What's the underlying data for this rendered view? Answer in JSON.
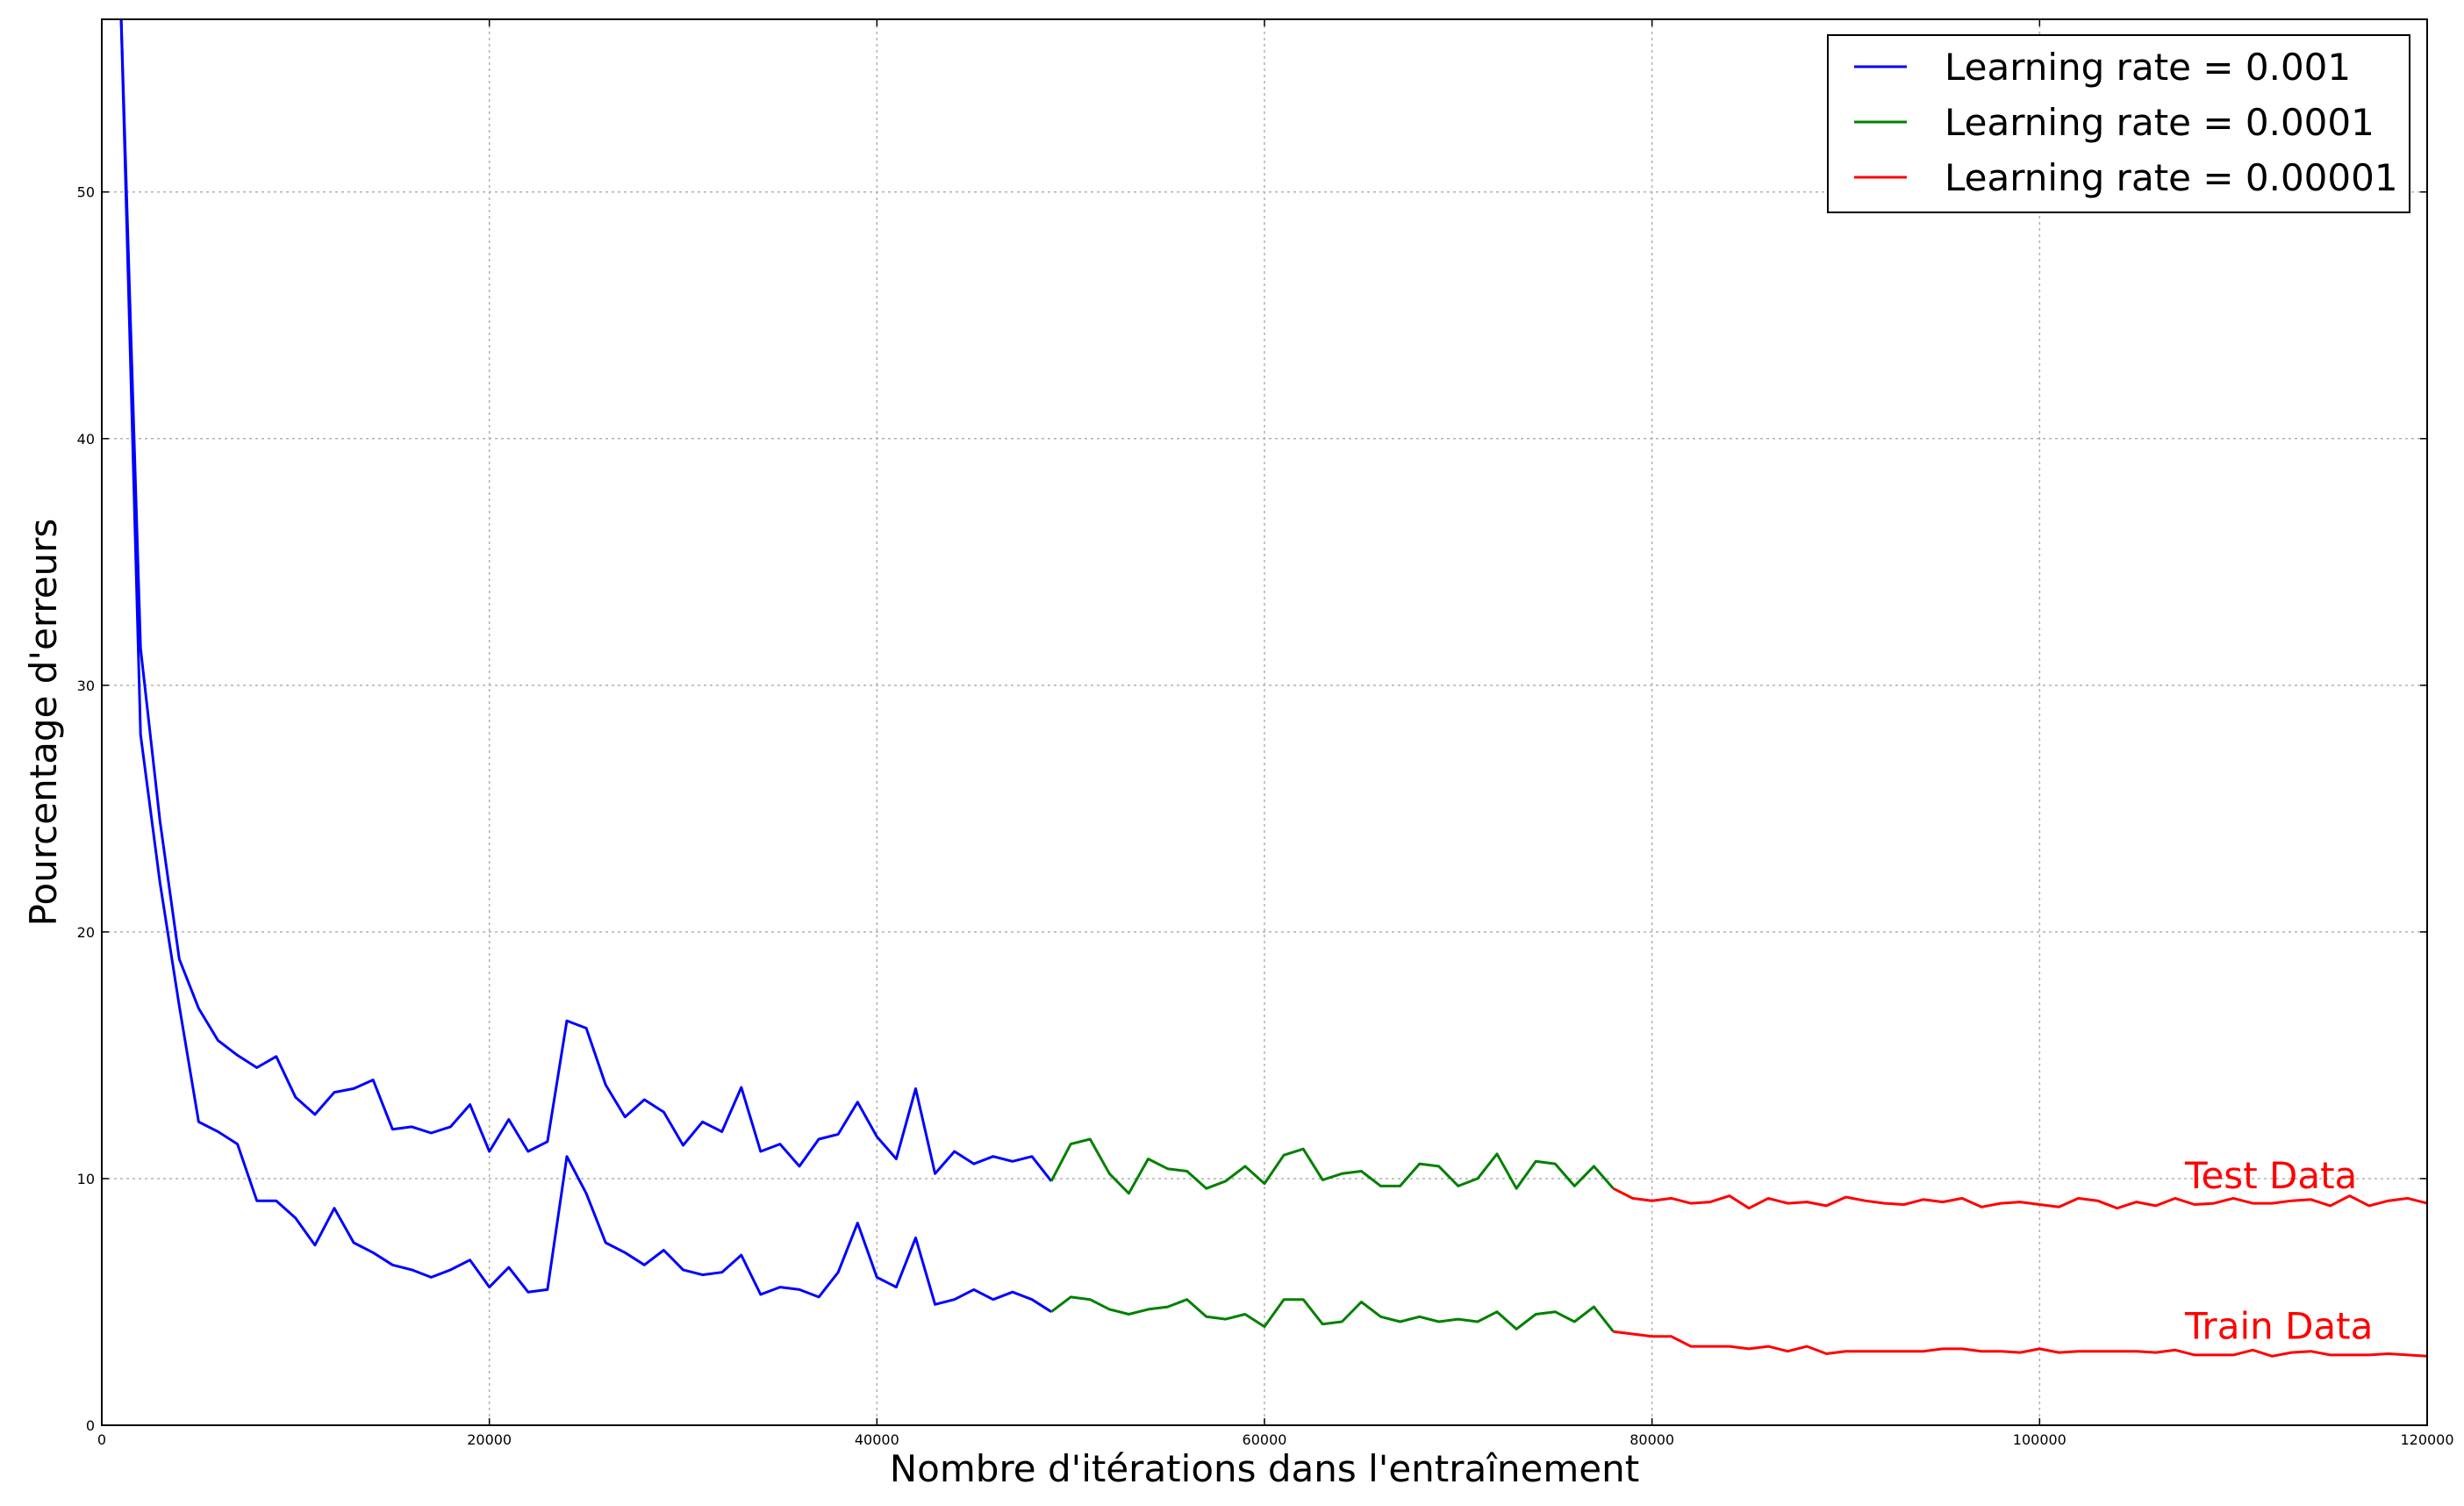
{
  "chart_data": {
    "type": "line",
    "title": "",
    "xlabel": "Nombre d'itérations dans l'entraînement",
    "ylabel": "Pourcentage d'erreurs",
    "xlim": [
      0,
      120000
    ],
    "ylim": [
      0,
      57
    ],
    "x_ticks": [
      0,
      20000,
      40000,
      60000,
      80000,
      100000,
      120000
    ],
    "y_ticks": [
      0,
      10,
      20,
      30,
      40,
      50
    ],
    "grid": true,
    "legend_position": "top-right",
    "colors": {
      "lr_001": "#0000ff",
      "lr_0001": "#008000",
      "lr_00001": "#ff0000",
      "annotation": "#ff0000"
    },
    "series": [
      {
        "name": "Learning rate = 0.001",
        "color": "#0000ff",
        "curves": [
          {
            "x": [
              1000,
              2000,
              3000,
              4000,
              5000,
              6000,
              7000,
              8000,
              9000,
              10000,
              11000,
              12000,
              13000,
              14000,
              15000,
              16000,
              17000,
              18000,
              19000,
              20000,
              21000,
              22000,
              23000,
              24000,
              25000,
              26000,
              27000,
              28000,
              29000,
              30000,
              31000,
              32000,
              33000,
              34000,
              35000,
              36000,
              37000,
              38000,
              39000,
              40000,
              41000,
              42000,
              43000,
              44000,
              45000,
              46000,
              47000,
              48000,
              49000
            ],
            "y": [
              57,
              31.5,
              24.5,
              18.9,
              16.9,
              15.6,
              15.0,
              14.5,
              14.95,
              13.3,
              12.6,
              13.5,
              13.65,
              14.0,
              12.0,
              12.1,
              11.85,
              12.1,
              13.0,
              11.1,
              12.4,
              11.1,
              11.5,
              16.4,
              16.1,
              13.8,
              12.5,
              13.2,
              12.7,
              11.35,
              12.3,
              11.9,
              13.7,
              11.1,
              11.4,
              10.5,
              11.6,
              11.8,
              13.1,
              11.7,
              10.8,
              13.65,
              10.2,
              11.1,
              10.6,
              10.9,
              10.7,
              10.9,
              9.9
            ]
          },
          {
            "x": [
              1000,
              2000,
              3000,
              4000,
              5000,
              6000,
              7000,
              8000,
              9000,
              10000,
              11000,
              12000,
              13000,
              14000,
              15000,
              16000,
              17000,
              18000,
              19000,
              20000,
              21000,
              22000,
              23000,
              24000,
              25000,
              26000,
              27000,
              28000,
              29000,
              30000,
              31000,
              32000,
              33000,
              34000,
              35000,
              36000,
              37000,
              38000,
              39000,
              40000,
              41000,
              42000,
              43000,
              44000,
              45000,
              46000,
              47000,
              48000,
              49000
            ],
            "y": [
              57,
              28.0,
              22.0,
              17.0,
              12.3,
              11.9,
              11.4,
              9.1,
              9.1,
              8.4,
              7.3,
              8.8,
              7.4,
              7.0,
              6.5,
              6.3,
              6.0,
              6.3,
              6.7,
              5.6,
              6.4,
              5.4,
              5.5,
              10.9,
              9.4,
              7.4,
              7.0,
              6.5,
              7.1,
              6.3,
              6.1,
              6.2,
              6.9,
              5.3,
              5.6,
              5.5,
              5.2,
              6.2,
              8.2,
              6.0,
              5.6,
              7.6,
              4.9,
              5.1,
              5.5,
              5.1,
              5.4,
              5.1,
              4.6
            ]
          }
        ]
      },
      {
        "name": "Learning rate = 0.0001",
        "color": "#008000",
        "curves": [
          {
            "x": [
              49000,
              50000,
              51000,
              52000,
              53000,
              54000,
              55000,
              56000,
              57000,
              58000,
              59000,
              60000,
              61000,
              62000,
              63000,
              64000,
              65000,
              66000,
              67000,
              68000,
              69000,
              70000,
              71000,
              72000,
              73000,
              74000,
              75000,
              76000,
              77000,
              78000
            ],
            "y": [
              9.9,
              11.4,
              11.6,
              10.2,
              9.4,
              10.8,
              10.4,
              10.3,
              9.6,
              9.9,
              10.5,
              9.8,
              10.95,
              11.2,
              9.95,
              10.2,
              10.3,
              9.7,
              9.7,
              10.6,
              10.5,
              9.7,
              10.0,
              11.0,
              9.6,
              10.7,
              10.6,
              9.7,
              10.5,
              9.6
            ]
          },
          {
            "x": [
              49000,
              50000,
              51000,
              52000,
              53000,
              54000,
              55000,
              56000,
              57000,
              58000,
              59000,
              60000,
              61000,
              62000,
              63000,
              64000,
              65000,
              66000,
              67000,
              68000,
              69000,
              70000,
              71000,
              72000,
              73000,
              74000,
              75000,
              76000,
              77000,
              78000
            ],
            "y": [
              4.6,
              5.2,
              5.1,
              4.7,
              4.5,
              4.7,
              4.8,
              5.1,
              4.4,
              4.3,
              4.5,
              4.0,
              5.1,
              5.1,
              4.1,
              4.2,
              5.0,
              4.4,
              4.2,
              4.4,
              4.2,
              4.3,
              4.2,
              4.6,
              3.9,
              4.5,
              4.6,
              4.2,
              4.8,
              3.8
            ]
          }
        ]
      },
      {
        "name": "Learning rate = 0.00001",
        "color": "#ff0000",
        "curves": [
          {
            "x": [
              78000,
              79000,
              80000,
              81000,
              82000,
              83000,
              84000,
              85000,
              86000,
              87000,
              88000,
              89000,
              90000,
              91000,
              92000,
              93000,
              94000,
              95000,
              96000,
              97000,
              98000,
              99000,
              100000,
              101000,
              102000,
              103000,
              104000,
              105000,
              106000,
              107000,
              108000,
              109000,
              110000,
              111000,
              112000,
              113000,
              114000,
              115000,
              116000,
              117000,
              118000,
              119000,
              120000
            ],
            "y": [
              9.6,
              9.2,
              9.1,
              9.2,
              9.0,
              9.05,
              9.3,
              8.8,
              9.2,
              9.0,
              9.05,
              8.9,
              9.25,
              9.1,
              9.0,
              8.95,
              9.15,
              9.05,
              9.2,
              8.85,
              9.0,
              9.05,
              8.95,
              8.85,
              9.2,
              9.1,
              8.8,
              9.05,
              8.9,
              9.2,
              8.95,
              9.0,
              9.2,
              9.0,
              9.0,
              9.1,
              9.15,
              8.9,
              9.3,
              8.9,
              9.1,
              9.2,
              9.0
            ]
          },
          {
            "x": [
              78000,
              79000,
              80000,
              81000,
              82000,
              83000,
              84000,
              85000,
              86000,
              87000,
              88000,
              89000,
              90000,
              91000,
              92000,
              93000,
              94000,
              95000,
              96000,
              97000,
              98000,
              99000,
              100000,
              101000,
              102000,
              103000,
              104000,
              105000,
              106000,
              107000,
              108000,
              109000,
              110000,
              111000,
              112000,
              113000,
              114000,
              115000,
              116000,
              117000,
              118000,
              119000,
              120000
            ],
            "y": [
              3.8,
              3.7,
              3.6,
              3.6,
              3.2,
              3.2,
              3.2,
              3.1,
              3.2,
              3.0,
              3.2,
              2.9,
              3.0,
              3.0,
              3.0,
              3.0,
              3.0,
              3.1,
              3.1,
              3.0,
              3.0,
              2.95,
              3.1,
              2.95,
              3.0,
              3.0,
              3.0,
              3.0,
              2.95,
              3.05,
              2.85,
              2.85,
              2.85,
              3.05,
              2.8,
              2.95,
              3.0,
              2.85,
              2.85,
              2.85,
              2.9,
              2.85,
              2.8
            ]
          }
        ]
      }
    ],
    "annotations": [
      {
        "text": "Test Data",
        "x": 107500,
        "y": 9.6
      },
      {
        "text": "Train Data",
        "x": 107500,
        "y": 3.5
      }
    ]
  }
}
